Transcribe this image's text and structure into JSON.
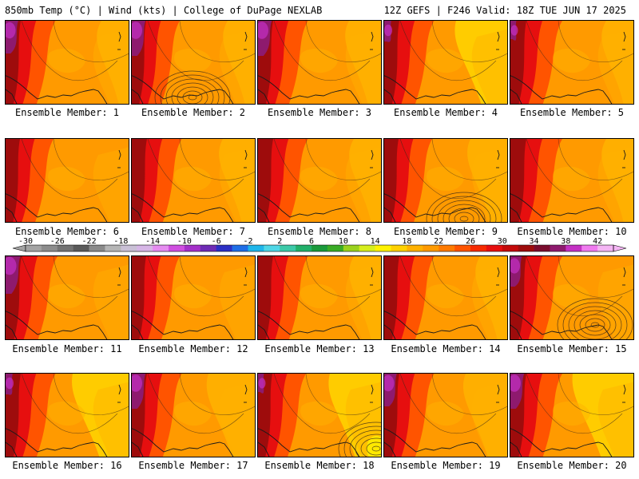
{
  "header": {
    "left": "850mb Temp (°C) | Wind (kts) | College of DuPage NEXLAB",
    "right": "12Z GEFS | F246 Valid: 18Z TUE JUN 17 2025"
  },
  "member_label_prefix": "Ensemble Member: ",
  "members": [
    {
      "id": 1,
      "caption": "Ensemble Member: 1",
      "west_heat": 0.9,
      "purple_west": 0.7,
      "east_yellow": 0.1,
      "low_center": null
    },
    {
      "id": 2,
      "caption": "Ensemble Member: 2",
      "west_heat": 0.8,
      "purple_west": 0.8,
      "east_yellow": 0.1,
      "low_center": "central-south"
    },
    {
      "id": 3,
      "caption": "Ensemble Member: 3",
      "west_heat": 0.9,
      "purple_west": 0.8,
      "east_yellow": 0.2,
      "low_center": null
    },
    {
      "id": 4,
      "caption": "Ensemble Member: 4",
      "west_heat": 0.9,
      "purple_west": 0.2,
      "east_yellow": 0.6,
      "low_center": null
    },
    {
      "id": 5,
      "caption": "Ensemble Member: 5",
      "west_heat": 1.0,
      "purple_west": 0.1,
      "east_yellow": 0.1,
      "low_center": null
    },
    {
      "id": 6,
      "caption": "Ensemble Member: 6",
      "west_heat": 0.8,
      "purple_west": 0.0,
      "east_yellow": 0.0,
      "low_center": null
    },
    {
      "id": 7,
      "caption": "Ensemble Member: 7",
      "west_heat": 0.9,
      "purple_west": 0.0,
      "east_yellow": 0.2,
      "low_center": null
    },
    {
      "id": 8,
      "caption": "Ensemble Member: 8",
      "west_heat": 0.9,
      "purple_west": 0.0,
      "east_yellow": 0.1,
      "low_center": null
    },
    {
      "id": 9,
      "caption": "Ensemble Member: 9",
      "west_heat": 0.8,
      "purple_west": 0.0,
      "east_yellow": 0.3,
      "low_center": "south"
    },
    {
      "id": 10,
      "caption": "Ensemble Member: 10",
      "west_heat": 1.0,
      "purple_west": 0.0,
      "east_yellow": 0.1,
      "low_center": null
    },
    {
      "id": 11,
      "caption": "Ensemble Member: 11",
      "west_heat": 1.0,
      "purple_west": 0.9,
      "east_yellow": 0.0,
      "low_center": null
    },
    {
      "id": 12,
      "caption": "Ensemble Member: 12",
      "west_heat": 0.8,
      "purple_west": 0.0,
      "east_yellow": 0.0,
      "low_center": null
    },
    {
      "id": 13,
      "caption": "Ensemble Member: 13",
      "west_heat": 0.9,
      "purple_west": 0.0,
      "east_yellow": 0.1,
      "low_center": null
    },
    {
      "id": 14,
      "caption": "Ensemble Member: 14",
      "west_heat": 0.9,
      "purple_west": 0.0,
      "east_yellow": 0.1,
      "low_center": null
    },
    {
      "id": 15,
      "caption": "Ensemble Member: 15",
      "west_heat": 1.0,
      "purple_west": 0.6,
      "east_yellow": 0.0,
      "low_center": "southeast"
    },
    {
      "id": 16,
      "caption": "Ensemble Member: 16",
      "west_heat": 0.9,
      "purple_west": 0.2,
      "east_yellow": 0.7,
      "low_center": null
    },
    {
      "id": 17,
      "caption": "Ensemble Member: 17",
      "west_heat": 0.9,
      "purple_west": 0.8,
      "east_yellow": 0.5,
      "low_center": null
    },
    {
      "id": 18,
      "caption": "Ensemble Member: 18",
      "west_heat": 0.8,
      "purple_west": 0.1,
      "east_yellow": 0.6,
      "low_center": "east-coast"
    },
    {
      "id": 19,
      "caption": "Ensemble Member: 19",
      "west_heat": 0.9,
      "purple_west": 0.7,
      "east_yellow": 0.4,
      "low_center": null
    },
    {
      "id": 20,
      "caption": "Ensemble Member: 20",
      "west_heat": 1.0,
      "purple_west": 0.8,
      "east_yellow": 0.8,
      "low_center": null
    }
  ],
  "colorbar": {
    "tick_labels": [
      "-30",
      "-26",
      "-22",
      "-18",
      "-14",
      "-10",
      "-6",
      "-2",
      "2",
      "6",
      "10",
      "14",
      "18",
      "22",
      "26",
      "30",
      "34",
      "38",
      "42"
    ],
    "bins": [
      {
        "min": -30,
        "color": "#a3a3a3"
      },
      {
        "min": -28,
        "color": "#8c8c8c"
      },
      {
        "min": -26,
        "color": "#737373"
      },
      {
        "min": -24,
        "color": "#5a5a5a"
      },
      {
        "min": -22,
        "color": "#8a8a8a"
      },
      {
        "min": -20,
        "color": "#b5b5b5"
      },
      {
        "min": -18,
        "color": "#c9c0d6"
      },
      {
        "min": -16,
        "color": "#d6b6e6"
      },
      {
        "min": -14,
        "color": "#e58cf0"
      },
      {
        "min": -12,
        "color": "#cf4fe0"
      },
      {
        "min": -10,
        "color": "#a430c9"
      },
      {
        "min": -8,
        "color": "#6e2bb5"
      },
      {
        "min": -6,
        "color": "#2b2fc4"
      },
      {
        "min": -4,
        "color": "#1f6ee6"
      },
      {
        "min": -2,
        "color": "#1fb6ea"
      },
      {
        "min": 0,
        "color": "#4fd6e6"
      },
      {
        "min": 2,
        "color": "#3cc9a8"
      },
      {
        "min": 4,
        "color": "#22b06a"
      },
      {
        "min": 6,
        "color": "#1a9a3b"
      },
      {
        "min": 8,
        "color": "#3aac26"
      },
      {
        "min": 10,
        "color": "#9ad21e"
      },
      {
        "min": 12,
        "color": "#d6ee1e"
      },
      {
        "min": 14,
        "color": "#fff200"
      },
      {
        "min": 16,
        "color": "#ffd100"
      },
      {
        "min": 18,
        "color": "#ffb100"
      },
      {
        "min": 20,
        "color": "#ff9a00"
      },
      {
        "min": 22,
        "color": "#ff7a00"
      },
      {
        "min": 24,
        "color": "#ff5400"
      },
      {
        "min": 26,
        "color": "#f62a00"
      },
      {
        "min": 28,
        "color": "#e60f0f"
      },
      {
        "min": 30,
        "color": "#c40a0a"
      },
      {
        "min": 32,
        "color": "#9e0c0c"
      },
      {
        "min": 34,
        "color": "#7a0d2e"
      },
      {
        "min": 36,
        "color": "#8e1a6e"
      },
      {
        "min": 38,
        "color": "#c431c4"
      },
      {
        "min": 40,
        "color": "#ef7aef"
      },
      {
        "min": 42,
        "color": "#f4b5f4"
      }
    ]
  },
  "palette": {
    "purple": "#8e1a6e",
    "magenta": "#c431c4",
    "darkred": "#9e0c0c",
    "red": "#e60f0f",
    "orangered": "#ff5400",
    "orange": "#ff9a00",
    "amber": "#ffb100",
    "gold": "#ffd100",
    "yellow": "#fff200",
    "line": "#3a2a1a"
  }
}
